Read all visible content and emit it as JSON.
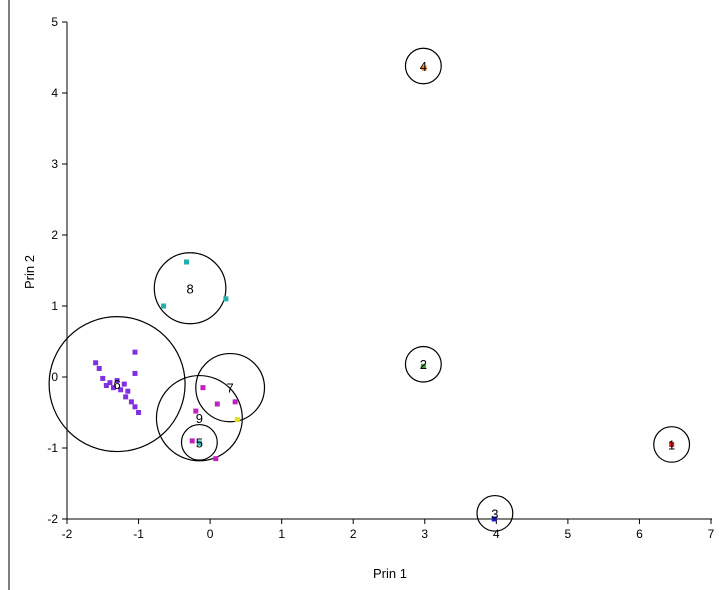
{
  "chart_data": {
    "type": "scatter",
    "title": "",
    "xlabel": "Prin 1",
    "ylabel": "Prin 2",
    "xlim": [
      -2,
      7
    ],
    "ylim": [
      -2,
      5
    ],
    "x_ticks": [
      "-2",
      "-1",
      "0",
      "1",
      "2",
      "3",
      "4",
      "5",
      "6",
      "7"
    ],
    "y_ticks": [
      "-2",
      "-1",
      "0",
      "1",
      "2",
      "3",
      "4",
      "5"
    ],
    "grid": false,
    "legend": "none",
    "clusters": [
      {
        "label": "1",
        "cx": 6.45,
        "cy": -0.95,
        "r": 0.25
      },
      {
        "label": "2",
        "cx": 2.98,
        "cy": 0.18,
        "r": 0.25
      },
      {
        "label": "3",
        "cx": 3.98,
        "cy": -1.92,
        "r": 0.25
      },
      {
        "label": "4",
        "cx": 2.98,
        "cy": 4.38,
        "r": 0.25
      },
      {
        "label": "5",
        "cx": -0.15,
        "cy": -0.92,
        "r": 0.25
      },
      {
        "label": "6",
        "cx": -1.3,
        "cy": -0.1,
        "r": 0.95
      },
      {
        "label": "7",
        "cx": 0.28,
        "cy": -0.15,
        "r": 0.48
      },
      {
        "label": "8",
        "cx": -0.28,
        "cy": 1.25,
        "r": 0.5
      },
      {
        "label": "9",
        "cx": -0.15,
        "cy": -0.58,
        "r": 0.6
      }
    ],
    "points": [
      {
        "x": 6.45,
        "y": -0.95,
        "color": "#e02020"
      },
      {
        "x": 2.98,
        "y": 0.15,
        "color": "#40a040"
      },
      {
        "x": 3.97,
        "y": -2.0,
        "color": "#2020c0"
      },
      {
        "x": 2.99,
        "y": 4.35,
        "color": "#f08020"
      },
      {
        "x": -0.33,
        "y": 1.62,
        "color": "#20b0b0"
      },
      {
        "x": 0.22,
        "y": 1.1,
        "color": "#20b0b0"
      },
      {
        "x": -0.65,
        "y": 1.0,
        "color": "#20b0b0"
      },
      {
        "x": -0.15,
        "y": -0.93,
        "color": "#20b0b0"
      },
      {
        "x": -0.25,
        "y": -0.9,
        "color": "#c020c0"
      },
      {
        "x": 0.08,
        "y": -1.15,
        "color": "#c020c0"
      },
      {
        "x": -0.1,
        "y": -0.15,
        "color": "#c020c0"
      },
      {
        "x": 0.1,
        "y": -0.38,
        "color": "#c020c0"
      },
      {
        "x": -0.2,
        "y": -0.48,
        "color": "#c020c0"
      },
      {
        "x": 0.35,
        "y": -0.35,
        "color": "#c020c0"
      },
      {
        "x": 0.38,
        "y": -0.6,
        "color": "#e0e020"
      },
      {
        "x": -1.6,
        "y": 0.2,
        "color": "#8030e0"
      },
      {
        "x": -1.55,
        "y": 0.12,
        "color": "#8030e0"
      },
      {
        "x": -1.5,
        "y": -0.02,
        "color": "#8030e0"
      },
      {
        "x": -1.4,
        "y": -0.08,
        "color": "#8030e0"
      },
      {
        "x": -1.35,
        "y": -0.15,
        "color": "#8030e0"
      },
      {
        "x": -1.3,
        "y": -0.05,
        "color": "#8030e0"
      },
      {
        "x": -1.25,
        "y": -0.18,
        "color": "#8030e0"
      },
      {
        "x": -1.2,
        "y": -0.1,
        "color": "#8030e0"
      },
      {
        "x": -1.15,
        "y": -0.2,
        "color": "#8030e0"
      },
      {
        "x": -1.1,
        "y": -0.35,
        "color": "#8030e0"
      },
      {
        "x": -1.05,
        "y": -0.42,
        "color": "#8030e0"
      },
      {
        "x": -1.0,
        "y": -0.5,
        "color": "#8030e0"
      },
      {
        "x": -1.05,
        "y": 0.05,
        "color": "#8030e0"
      },
      {
        "x": -1.05,
        "y": 0.35,
        "color": "#8030e0"
      },
      {
        "x": -1.45,
        "y": -0.12,
        "color": "#8030e0"
      },
      {
        "x": -1.18,
        "y": -0.28,
        "color": "#8030e0"
      }
    ]
  }
}
